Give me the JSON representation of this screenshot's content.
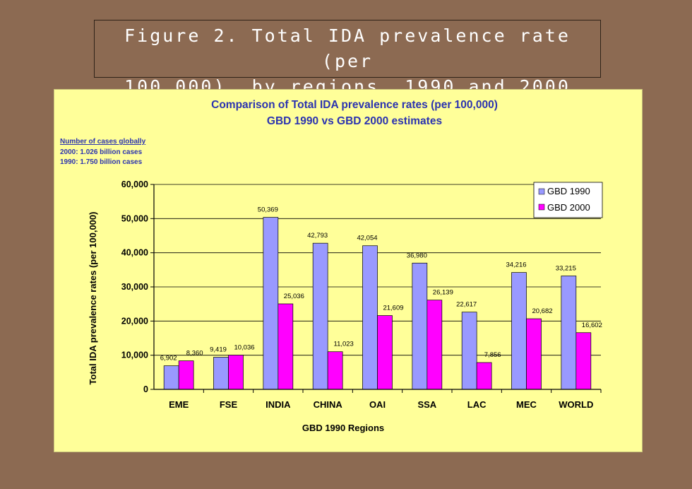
{
  "slide": {
    "title_line1": "Figure 2. Total IDA prevalence rate (per",
    "title_line2": "100,000), by regions, 1990 and 2000"
  },
  "colors": {
    "background": "#8c6a52",
    "panel": "#ffff99",
    "series_1990": "#9999ff",
    "series_2000": "#ff00ff",
    "title_text": "#2b33b0"
  },
  "note": {
    "heading": "Number of cases globally",
    "line1": "2000: 1.026 billion cases",
    "line2": "1990: 1.750  billion cases"
  },
  "chart_data": {
    "type": "bar",
    "title": "Comparison of Total IDA prevalence rates (per 100,000)",
    "subtitle": "GBD 1990 vs GBD 2000 estimates",
    "xlabel": "GBD 1990 Regions",
    "ylabel": "Total IDA prevalence rates (per 100,000)",
    "ylim": [
      0,
      60000
    ],
    "yticks": [
      0,
      10000,
      20000,
      30000,
      40000,
      50000,
      60000
    ],
    "ytick_labels": [
      "0",
      "10,000",
      "20,000",
      "30,000",
      "40,000",
      "50,000",
      "60,000"
    ],
    "grid": true,
    "legend_position": "top-right",
    "categories": [
      "EME",
      "FSE",
      "INDIA",
      "CHINA",
      "OAI",
      "SSA",
      "LAC",
      "MEC",
      "WORLD"
    ],
    "series": [
      {
        "name": "GBD 1990",
        "values": [
          6902,
          9419,
          50369,
          42793,
          42054,
          36980,
          22617,
          34216,
          33215
        ],
        "labels": [
          "6,902",
          "9,419",
          "50,369",
          "42,793",
          "42,054",
          "36,980",
          "22,617",
          "34,216",
          "33,215"
        ]
      },
      {
        "name": "GBD 2000",
        "values": [
          8360,
          10036,
          25036,
          11023,
          21609,
          26139,
          7856,
          20682,
          16602
        ],
        "labels": [
          "8,360",
          "10,036",
          "25,036",
          "11,023",
          "21,609",
          "26,139",
          "7,856",
          "20,682",
          "16,602"
        ]
      }
    ]
  }
}
